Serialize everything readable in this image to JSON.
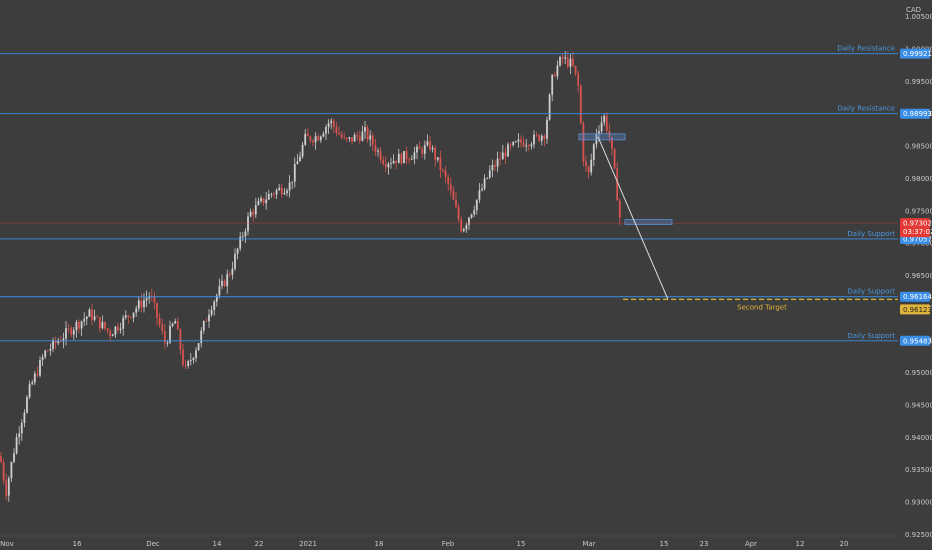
{
  "header": {
    "currency": "CAD"
  },
  "colors": {
    "background": "#3d3d3d",
    "resistance_support": "#3a8ee6",
    "up_candle": "#cfcfcf",
    "down_candle": "#d9534f",
    "target": "#e0b43a",
    "current_price": "#e53935",
    "projection": "#dddddd",
    "zone": "#5b8fd6"
  },
  "chart_data": {
    "type": "candlestick",
    "symbol_currency": "CAD",
    "y_ticks": [
      "1.00500",
      "1.00000",
      "0.99500",
      "0.99000",
      "0.98500",
      "0.98000",
      "0.97500",
      "0.97000",
      "0.96500",
      "0.96000",
      "0.95500",
      "0.95000",
      "0.94500",
      "0.94000",
      "0.93500",
      "0.93000",
      "0.92500"
    ],
    "x_ticks": [
      "Nov",
      "16",
      "Dec",
      "14",
      "22",
      "2021",
      "18",
      "Feb",
      "15",
      "Mar",
      "15",
      "23",
      "Apr",
      "12",
      "20"
    ],
    "ylim": [
      0.9225,
      1.0075
    ],
    "levels": [
      {
        "label": "Daily Resistance",
        "value": 0.99921,
        "badge": "0.99921"
      },
      {
        "label": "Daily Resistance",
        "value": 0.98993,
        "badge": "0.98993"
      },
      {
        "label": "Daily Support",
        "value": 0.97057,
        "badge": "0.97057"
      },
      {
        "label": "Daily Support",
        "value": 0.96164,
        "badge": "0.96164"
      },
      {
        "label": "Daily Support",
        "value": 0.95483,
        "badge": "0.95483"
      }
    ],
    "target": {
      "label": "Second Target",
      "value": 0.96123,
      "badge": "0.96123"
    },
    "current_price": {
      "value": 0.97302,
      "badge": "0.97302",
      "countdown": "03:37:02"
    },
    "price_anchors": [
      [
        0,
        0.937
      ],
      [
        6,
        0.9315
      ],
      [
        16,
        0.9395
      ],
      [
        30,
        0.9475
      ],
      [
        45,
        0.953
      ],
      [
        70,
        0.9565
      ],
      [
        90,
        0.959
      ],
      [
        110,
        0.956
      ],
      [
        130,
        0.959
      ],
      [
        150,
        0.962
      ],
      [
        165,
        0.9545
      ],
      [
        175,
        0.958
      ],
      [
        185,
        0.95
      ],
      [
        198,
        0.9545
      ],
      [
        210,
        0.96
      ],
      [
        230,
        0.9655
      ],
      [
        250,
        0.9745
      ],
      [
        270,
        0.9775
      ],
      [
        290,
        0.979
      ],
      [
        305,
        0.986
      ],
      [
        318,
        0.9865
      ],
      [
        330,
        0.9888
      ],
      [
        345,
        0.9855
      ],
      [
        365,
        0.987
      ],
      [
        385,
        0.9825
      ],
      [
        410,
        0.9835
      ],
      [
        430,
        0.985
      ],
      [
        448,
        0.979
      ],
      [
        462,
        0.972
      ],
      [
        475,
        0.976
      ],
      [
        490,
        0.981
      ],
      [
        505,
        0.984
      ],
      [
        520,
        0.9855
      ],
      [
        535,
        0.986
      ],
      [
        545,
        0.987
      ],
      [
        553,
        0.996
      ],
      [
        562,
        0.9985
      ],
      [
        572,
        0.9975
      ],
      [
        578,
        0.9945
      ],
      [
        583,
        0.9835
      ],
      [
        588,
        0.98
      ],
      [
        596,
        0.987
      ],
      [
        604,
        0.9895
      ],
      [
        610,
        0.986
      ],
      [
        616,
        0.979
      ],
      [
        622,
        0.971
      ]
    ]
  }
}
